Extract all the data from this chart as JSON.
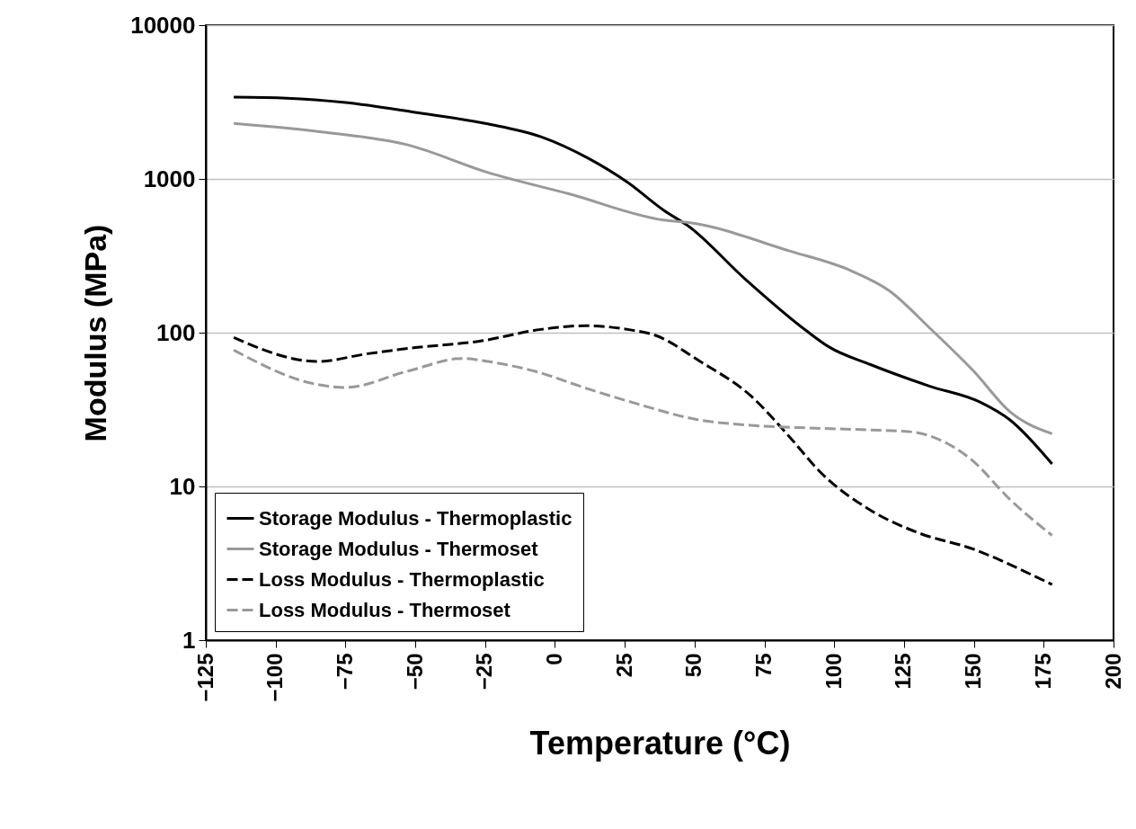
{
  "chart_data": {
    "type": "line",
    "xlabel": "Temperature (°C)",
    "ylabel": "Modulus (MPa)",
    "xlim": [
      -125,
      200
    ],
    "xticks": [
      -125,
      -100,
      -75,
      -50,
      -25,
      0,
      25,
      50,
      75,
      100,
      125,
      150,
      175,
      200
    ],
    "ylim": [
      1,
      10000
    ],
    "yticks": [
      1,
      10,
      100,
      1000,
      10000
    ],
    "log": "y",
    "grid": "y",
    "legend": "bottom left",
    "series": [
      {
        "name": "Storage Modulus - Thermoplastic",
        "color": "#000000",
        "line_style": "solid",
        "x": [
          -115,
          -96,
          -75,
          -50,
          -24,
          -5,
          12,
          26,
          39,
          48,
          68,
          90,
          98,
          113,
          134,
          152,
          163,
          178
        ],
        "values": [
          3400,
          3350,
          3140,
          2710,
          2280,
          1880,
          1360,
          950,
          624,
          490,
          224,
          103,
          81,
          62,
          45,
          35.5,
          27,
          14
        ]
      },
      {
        "name": "Storage Modulus - Thermoset",
        "color": "#999999",
        "line_style": "solid",
        "x": [
          -115,
          -82,
          -53,
          -24,
          5,
          39,
          48,
          84,
          106,
          120,
          134,
          150,
          163,
          178
        ],
        "values": [
          2300,
          2010,
          1670,
          1100,
          800,
          540,
          520,
          340,
          253,
          186,
          108,
          56,
          30.5,
          22
        ]
      },
      {
        "name": "Loss Modulus - Thermoplastic",
        "color": "#000000",
        "line_style": "dashed",
        "x": [
          -115,
          -85,
          -67,
          -50,
          -27,
          -5,
          11,
          26,
          36,
          52,
          70,
          84,
          95,
          113,
          130,
          150,
          170,
          178
        ],
        "values": [
          93,
          65,
          73,
          80,
          88,
          105,
          111,
          105,
          96,
          65,
          39,
          21,
          12.4,
          7,
          5,
          3.9,
          2.7,
          2.3
        ]
      },
      {
        "name": "Loss Modulus - Thermoset",
        "color": "#999999",
        "line_style": "dashed",
        "x": [
          -115,
          -85,
          -75,
          -53,
          -33,
          -24,
          -7,
          12,
          27,
          52,
          70,
          91,
          113,
          127,
          149,
          163,
          178
        ],
        "values": [
          77,
          46,
          44,
          56,
          68,
          65,
          56,
          43,
          35.5,
          27,
          25,
          24,
          23.3,
          22.7,
          15,
          8.2,
          4.8
        ]
      }
    ]
  }
}
